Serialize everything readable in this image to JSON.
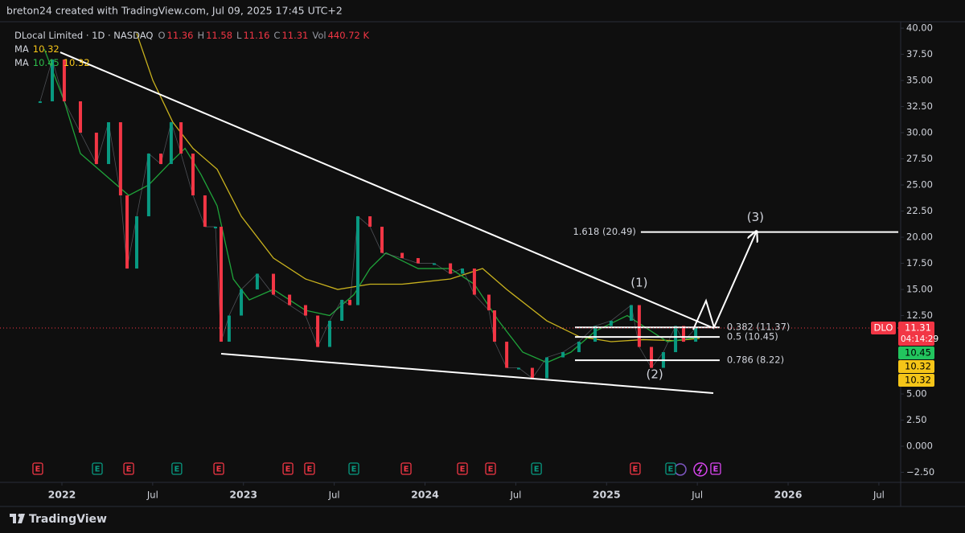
{
  "header": {
    "caption": "breton24 created with TradingView.com, Jul 09, 2025 17:45 UTC+2"
  },
  "legend": {
    "symbol": "DLocal Limited · 1D · NASDAQ",
    "ohlc": [
      {
        "key": "O",
        "value": 11.36
      },
      {
        "key": "H",
        "value": 11.58
      },
      {
        "key": "L",
        "value": 11.16
      },
      {
        "key": "C",
        "value": 11.31
      },
      {
        "key": "Vol",
        "value": "440.72 K"
      }
    ],
    "ohlc_color": "#f23645",
    "ma": [
      {
        "label": "MA",
        "values": [
          10.32
        ],
        "colors": [
          "#f5c518"
        ]
      },
      {
        "label": "MA",
        "values": [
          10.45,
          10.32
        ],
        "colors": [
          "#2ebd4a",
          "#f5c518"
        ]
      }
    ]
  },
  "price_axis": {
    "ylim": [
      -3.46,
      40.62
    ],
    "yticks": [
      {
        "value": 40,
        "label": "40.00"
      },
      {
        "value": 37.5,
        "label": "37.50"
      },
      {
        "value": 35,
        "label": "35.00"
      },
      {
        "value": 32.5,
        "label": "32.50"
      },
      {
        "value": 30,
        "label": "30.00"
      },
      {
        "value": 27.5,
        "label": "27.50"
      },
      {
        "value": 25,
        "label": "25.00"
      },
      {
        "value": 22.5,
        "label": "22.50"
      },
      {
        "value": 20,
        "label": "20.00"
      },
      {
        "value": 17.5,
        "label": "17.50"
      },
      {
        "value": 15,
        "label": "15.00"
      },
      {
        "value": 12.5,
        "label": "12.50"
      },
      {
        "value": 7.5,
        "label": "7.50"
      },
      {
        "value": 5,
        "label": "5.00"
      },
      {
        "value": 2.5,
        "label": "2.50"
      },
      {
        "value": 0,
        "label": "0.000"
      },
      {
        "value": -2.5,
        "label": "−2.50"
      }
    ]
  },
  "time_axis": {
    "xlim": [
      2021.659,
      2026.62
    ],
    "xticks": [
      {
        "value": 2022,
        "label": "2022"
      },
      {
        "value": 2022.5,
        "label": "Jul"
      },
      {
        "value": 2023,
        "label": "2023"
      },
      {
        "value": 2023.5,
        "label": "Jul"
      },
      {
        "value": 2024,
        "label": "2024"
      },
      {
        "value": 2024.5,
        "label": "Jul"
      },
      {
        "value": 2025,
        "label": "2025"
      },
      {
        "value": 2025.5,
        "label": "Jul"
      },
      {
        "value": 2026,
        "label": "2026"
      },
      {
        "value": 2026.5,
        "label": "Jul"
      }
    ]
  },
  "price": {
    "up_color": "#089981",
    "down_color": "#f23645",
    "t": [
      2021.88,
      2021.947,
      2022.013,
      2022.102,
      2022.19,
      2022.257,
      2022.323,
      2022.359,
      2022.412,
      2022.478,
      2022.545,
      2022.602,
      2022.656,
      2022.722,
      2022.788,
      2022.846,
      2022.877,
      2022.921,
      2022.988,
      2023.076,
      2023.165,
      2023.254,
      2023.342,
      2023.409,
      2023.475,
      2023.542,
      2023.586,
      2023.63,
      2023.697,
      2023.763,
      2023.874,
      2023.962,
      2024.051,
      2024.14,
      2024.206,
      2024.272,
      2024.352,
      2024.383,
      2024.45,
      2024.516,
      2024.591,
      2024.671,
      2024.76,
      2024.848,
      2024.937,
      2025.025,
      2025.136,
      2025.18,
      2025.247,
      2025.313,
      2025.38,
      2025.424,
      2025.491
    ],
    "values": [
      33,
      37,
      33,
      30,
      27,
      31,
      24,
      17,
      22,
      28,
      27,
      31,
      28,
      24,
      21,
      21,
      10,
      12.5,
      15,
      16.5,
      14.5,
      13.5,
      12.5,
      9.5,
      12,
      14,
      13.5,
      22,
      21,
      18.5,
      18,
      17.5,
      17.5,
      16.5,
      17,
      14.5,
      13,
      10,
      7.5,
      7.5,
      6.5,
      8.5,
      9,
      10,
      11.5,
      12,
      13.5,
      9.5,
      7.5,
      9,
      11.5,
      10,
      11.31
    ]
  },
  "moving_averages": [
    {
      "color": "#c9b21e",
      "t": [
        2022.412,
        2022.501,
        2022.611,
        2022.722,
        2022.855,
        2022.988,
        2023.165,
        2023.342,
        2023.519,
        2023.697,
        2023.874,
        2024.14,
        2024.317,
        2024.45,
        2024.671,
        2024.848,
        2025.025,
        2025.202,
        2025.38,
        2025.513
      ],
      "values": [
        39.5,
        35,
        31,
        28.5,
        26.5,
        22,
        18,
        16,
        15,
        15.5,
        15.5,
        16,
        17,
        15,
        12,
        10.5,
        10,
        10.2,
        10.1,
        10.32
      ]
    },
    {
      "color": "#1fa33a",
      "t": [
        2021.903,
        2022.013,
        2022.102,
        2022.235,
        2022.368,
        2022.478,
        2022.589,
        2022.678,
        2022.766,
        2022.855,
        2022.944,
        2023.032,
        2023.165,
        2023.342,
        2023.475,
        2023.608,
        2023.697,
        2023.785,
        2023.962,
        2024.14,
        2024.272,
        2024.405,
        2024.538,
        2024.671,
        2024.804,
        2024.937,
        2025.114,
        2025.202,
        2025.335,
        2025.513
      ],
      "values": [
        38,
        33,
        28,
        26,
        24,
        25,
        27,
        28.5,
        26,
        23,
        16,
        14,
        15,
        13,
        12.5,
        14.5,
        17,
        18.5,
        17,
        17,
        15.5,
        12,
        9,
        8,
        9,
        11,
        12.5,
        11.5,
        10,
        10.45
      ]
    }
  ],
  "trendlines": [
    {
      "t": [
        2021.991,
        2025.588
      ],
      "values": [
        37.69,
        11.31
      ]
    },
    {
      "t": [
        2022.877,
        2025.588
      ],
      "values": [
        8.85,
        5.08
      ]
    }
  ],
  "fib_levels": [
    {
      "label": "1.618 (20.49)",
      "value": 20.49,
      "t_start": 2025.189,
      "t_end": 2026.607,
      "label_side": "left"
    },
    {
      "label": "0.382 (11.37)",
      "value": 11.37,
      "t_start": 2024.826,
      "t_end": 2025.623,
      "label_side": "right"
    },
    {
      "label": "0.5 (10.45)",
      "value": 10.45,
      "t_start": 2024.826,
      "t_end": 2025.623,
      "label_side": "right"
    },
    {
      "label": "0.786 (8.22)",
      "value": 8.22,
      "t_start": 2024.826,
      "t_end": 2025.623,
      "label_side": "right"
    }
  ],
  "waves": [
    {
      "label": "(1)",
      "t": 2025.18,
      "value": 15.6
    },
    {
      "label": "(2)",
      "t": 2025.265,
      "value": 6.85
    },
    {
      "label": "(3)",
      "t": 2025.82,
      "value": 21.9
    }
  ],
  "projection": {
    "t": [
      2025.477,
      2025.548,
      2025.592,
      2025.823
    ],
    "values": [
      11.15,
      13.92,
      11.38,
      20.46
    ]
  },
  "last_price": {
    "symbol": "DLO",
    "value": 11.31,
    "countdown": "04:14:29",
    "color": "#f23645"
  },
  "axis_badges": [
    {
      "value": 10.45,
      "color": "#22c55e"
    },
    {
      "value": 10.32,
      "color": "#f5c518"
    },
    {
      "value": 10.32,
      "color": "#f5c518"
    }
  ],
  "events": [
    {
      "label": "E",
      "t": 2021.867,
      "color": "#f23645"
    },
    {
      "label": "E",
      "t": 2022.195,
      "color": "#089981"
    },
    {
      "label": "E",
      "t": 2022.368,
      "color": "#f23645"
    },
    {
      "label": "E",
      "t": 2022.633,
      "color": "#089981"
    },
    {
      "label": "E",
      "t": 2022.864,
      "color": "#f23645"
    },
    {
      "label": "E",
      "t": 2023.245,
      "color": "#f23645"
    },
    {
      "label": "E",
      "t": 2023.364,
      "color": "#f23645"
    },
    {
      "label": "E",
      "t": 2023.608,
      "color": "#089981"
    },
    {
      "label": "E",
      "t": 2023.896,
      "color": "#f23645"
    },
    {
      "label": "E",
      "t": 2024.206,
      "color": "#f23645"
    },
    {
      "label": "E",
      "t": 2024.361,
      "color": "#f23645"
    },
    {
      "label": "E",
      "t": 2024.614,
      "color": "#089981"
    },
    {
      "label": "E",
      "t": 2025.158,
      "color": "#f23645"
    },
    {
      "label": "E",
      "t": 2025.353,
      "color": "#089981"
    },
    {
      "label": "E",
      "t": 2025.601,
      "color": "#d946ef"
    }
  ],
  "footer": {
    "brand": "TradingView"
  }
}
